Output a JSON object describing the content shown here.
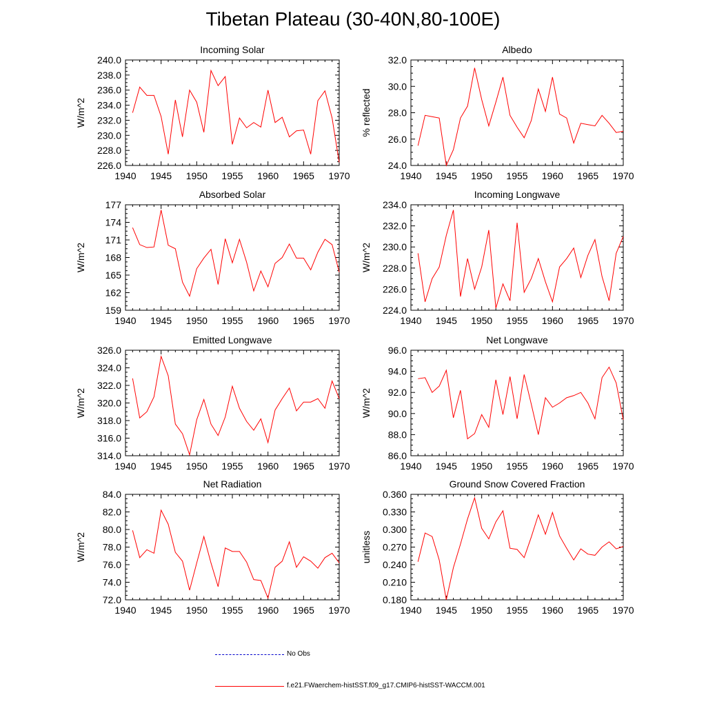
{
  "title": "Tibetan Plateau (30-40N,80-100E)",
  "colors": {
    "model": "#ff0000",
    "obs": "#0000cc",
    "axis": "#000000"
  },
  "legend": {
    "obs_label": "No Obs",
    "model_label": "f.e21.FWaerchem-histSST.f09_g17.CMIP6-histSST-WACCM.001"
  },
  "chart_data": [
    {
      "type": "line",
      "title": "Incoming Solar",
      "xlabel": "",
      "ylabel": "W/m^2",
      "xlim": [
        1940,
        1970
      ],
      "ylim": [
        226.0,
        240.0
      ],
      "xticks": [
        "1940",
        "1945",
        "1950",
        "1955",
        "1960",
        "1965",
        "1970"
      ],
      "yticks": [
        "226.0",
        "228.0",
        "230.0",
        "232.0",
        "234.0",
        "236.0",
        "238.0",
        "240.0"
      ],
      "x": [
        1941,
        1942,
        1943,
        1944,
        1945,
        1946,
        1947,
        1948,
        1949,
        1950,
        1951,
        1952,
        1953,
        1954,
        1955,
        1956,
        1957,
        1958,
        1959,
        1960,
        1961,
        1962,
        1963,
        1964,
        1965,
        1966,
        1967,
        1968,
        1969,
        1970
      ],
      "series": [
        {
          "values": [
            233.0,
            236.4,
            235.3,
            235.3,
            232.5,
            227.5,
            234.7,
            229.8,
            236.0,
            234.4,
            230.4,
            238.6,
            236.6,
            237.8,
            228.8,
            232.3,
            231.0,
            231.7,
            231.1,
            236.0,
            231.7,
            232.4,
            229.8,
            230.6,
            230.7,
            227.5,
            234.6,
            235.9,
            232.3,
            226.4
          ]
        }
      ]
    },
    {
      "type": "line",
      "title": "Albedo",
      "xlabel": "",
      "ylabel": "% reflected",
      "xlim": [
        1940,
        1970
      ],
      "ylim": [
        24.0,
        32.0
      ],
      "xticks": [
        "1940",
        "1945",
        "1950",
        "1955",
        "1960",
        "1965",
        "1970"
      ],
      "yticks": [
        "24.0",
        "26.0",
        "28.0",
        "30.0",
        "32.0"
      ],
      "x": [
        1941,
        1942,
        1943,
        1944,
        1945,
        1946,
        1947,
        1948,
        1949,
        1950,
        1951,
        1952,
        1953,
        1954,
        1955,
        1956,
        1957,
        1958,
        1959,
        1960,
        1961,
        1962,
        1963,
        1964,
        1965,
        1966,
        1967,
        1968,
        1969,
        1970
      ],
      "series": [
        {
          "values": [
            25.5,
            27.8,
            27.7,
            27.6,
            24.0,
            25.2,
            27.6,
            28.5,
            31.4,
            29.0,
            27.0,
            28.8,
            30.7,
            27.8,
            26.9,
            26.1,
            27.4,
            29.8,
            28.1,
            30.7,
            27.9,
            27.6,
            25.7,
            27.2,
            27.1,
            27.0,
            27.8,
            27.2,
            26.5,
            26.6
          ]
        }
      ]
    },
    {
      "type": "line",
      "title": "Absorbed Solar",
      "xlabel": "",
      "ylabel": "W/m^2",
      "xlim": [
        1940,
        1970
      ],
      "ylim": [
        159,
        177
      ],
      "xticks": [
        "1940",
        "1945",
        "1950",
        "1955",
        "1960",
        "1965",
        "1970"
      ],
      "yticks": [
        "159",
        "162",
        "165",
        "168",
        "171",
        "174",
        "177"
      ],
      "x": [
        1941,
        1942,
        1943,
        1944,
        1945,
        1946,
        1947,
        1948,
        1949,
        1950,
        1951,
        1952,
        1953,
        1954,
        1955,
        1956,
        1957,
        1958,
        1959,
        1960,
        1961,
        1962,
        1963,
        1964,
        1965,
        1966,
        1967,
        1968,
        1969,
        1970
      ],
      "series": [
        {
          "values": [
            173.1,
            170.2,
            169.7,
            169.8,
            176.1,
            170.1,
            169.5,
            163.8,
            161.4,
            166.1,
            167.9,
            169.4,
            163.4,
            171.2,
            167.1,
            171.1,
            167.2,
            162.3,
            165.7,
            163.0,
            167.0,
            168.0,
            170.3,
            167.9,
            167.9,
            165.9,
            168.9,
            171.1,
            170.2,
            165.5
          ]
        }
      ]
    },
    {
      "type": "line",
      "title": "Incoming Longwave",
      "xlabel": "",
      "ylabel": "W/m^2",
      "xlim": [
        1940,
        1970
      ],
      "ylim": [
        224.0,
        234.0
      ],
      "xticks": [
        "1940",
        "1945",
        "1950",
        "1955",
        "1960",
        "1965",
        "1970"
      ],
      "yticks": [
        "224.0",
        "226.0",
        "228.0",
        "230.0",
        "232.0",
        "234.0"
      ],
      "x": [
        1941,
        1942,
        1943,
        1944,
        1945,
        1946,
        1947,
        1948,
        1949,
        1950,
        1951,
        1952,
        1953,
        1954,
        1955,
        1956,
        1957,
        1958,
        1959,
        1960,
        1961,
        1962,
        1963,
        1964,
        1965,
        1966,
        1967,
        1968,
        1969,
        1970
      ],
      "series": [
        {
          "values": [
            229.4,
            224.8,
            227.0,
            228.1,
            231.1,
            233.5,
            225.3,
            228.9,
            226.0,
            228.1,
            231.6,
            224.2,
            226.5,
            224.9,
            232.3,
            225.7,
            227.0,
            228.9,
            226.7,
            224.8,
            228.1,
            228.9,
            229.9,
            227.1,
            229.2,
            230.7,
            227.2,
            224.9,
            229.4,
            231.0
          ]
        }
      ]
    },
    {
      "type": "line",
      "title": "Emitted Longwave",
      "xlabel": "",
      "ylabel": "W/m^2",
      "xlim": [
        1940,
        1970
      ],
      "ylim": [
        314.0,
        326.0
      ],
      "xticks": [
        "1940",
        "1945",
        "1950",
        "1955",
        "1960",
        "1965",
        "1970"
      ],
      "yticks": [
        "314.0",
        "316.0",
        "318.0",
        "320.0",
        "322.0",
        "324.0",
        "326.0"
      ],
      "x": [
        1941,
        1942,
        1943,
        1944,
        1945,
        1946,
        1947,
        1948,
        1949,
        1950,
        1951,
        1952,
        1953,
        1954,
        1955,
        1956,
        1957,
        1958,
        1959,
        1960,
        1961,
        1962,
        1963,
        1964,
        1965,
        1966,
        1967,
        1968,
        1969,
        1970
      ],
      "series": [
        {
          "values": [
            322.8,
            318.3,
            319.0,
            320.7,
            325.3,
            323.1,
            317.6,
            316.5,
            314.1,
            318.1,
            320.4,
            317.6,
            316.3,
            318.4,
            321.9,
            319.4,
            317.9,
            316.9,
            318.2,
            315.5,
            319.2,
            320.5,
            321.7,
            319.1,
            320.1,
            320.1,
            320.5,
            319.4,
            322.5,
            320.5
          ]
        }
      ]
    },
    {
      "type": "line",
      "title": "Net Longwave",
      "xlabel": "",
      "ylabel": "W/m^2",
      "xlim": [
        1940,
        1970
      ],
      "ylim": [
        86.0,
        96.0
      ],
      "xticks": [
        "1940",
        "1945",
        "1950",
        "1955",
        "1960",
        "1965",
        "1970"
      ],
      "yticks": [
        "86.0",
        "88.0",
        "90.0",
        "92.0",
        "94.0",
        "96.0"
      ],
      "x": [
        1941,
        1942,
        1943,
        1944,
        1945,
        1946,
        1947,
        1948,
        1949,
        1950,
        1951,
        1952,
        1953,
        1954,
        1955,
        1956,
        1957,
        1958,
        1959,
        1960,
        1961,
        1962,
        1963,
        1964,
        1965,
        1966,
        1967,
        1968,
        1969,
        1970
      ],
      "series": [
        {
          "values": [
            93.3,
            93.4,
            92.0,
            92.6,
            94.1,
            89.6,
            92.2,
            87.6,
            88.1,
            89.9,
            88.7,
            93.2,
            89.9,
            93.5,
            89.5,
            93.7,
            90.9,
            88.0,
            91.5,
            90.6,
            91.0,
            91.5,
            91.7,
            92.0,
            91.0,
            89.5,
            93.4,
            94.4,
            92.9,
            89.4
          ]
        }
      ]
    },
    {
      "type": "line",
      "title": "Net Radiation",
      "xlabel": "",
      "ylabel": "W/m^2",
      "xlim": [
        1940,
        1970
      ],
      "ylim": [
        72.0,
        84.0
      ],
      "xticks": [
        "1940",
        "1945",
        "1950",
        "1955",
        "1960",
        "1965",
        "1970"
      ],
      "yticks": [
        "72.0",
        "74.0",
        "76.0",
        "78.0",
        "80.0",
        "82.0",
        "84.0"
      ],
      "x": [
        1941,
        1942,
        1943,
        1944,
        1945,
        1946,
        1947,
        1948,
        1949,
        1950,
        1951,
        1952,
        1953,
        1954,
        1955,
        1956,
        1957,
        1958,
        1959,
        1960,
        1961,
        1962,
        1963,
        1964,
        1965,
        1966,
        1967,
        1968,
        1969,
        1970
      ],
      "series": [
        {
          "values": [
            79.9,
            76.8,
            77.7,
            77.3,
            82.2,
            80.6,
            77.4,
            76.4,
            73.1,
            76.2,
            79.2,
            76.2,
            73.5,
            77.9,
            77.5,
            77.5,
            76.3,
            74.3,
            74.2,
            72.2,
            75.7,
            76.4,
            78.6,
            75.7,
            76.9,
            76.4,
            75.6,
            76.8,
            77.3,
            76.2
          ]
        }
      ]
    },
    {
      "type": "line",
      "title": "Ground Snow Covered Fraction",
      "xlabel": "",
      "ylabel": "unitless",
      "xlim": [
        1940,
        1970
      ],
      "ylim": [
        0.18,
        0.36
      ],
      "xticks": [
        "1940",
        "1945",
        "1950",
        "1955",
        "1960",
        "1965",
        "1970"
      ],
      "yticks": [
        "0.180",
        "0.210",
        "0.240",
        "0.270",
        "0.300",
        "0.330",
        "0.360"
      ],
      "x": [
        1941,
        1942,
        1943,
        1944,
        1945,
        1946,
        1947,
        1948,
        1949,
        1950,
        1951,
        1952,
        1953,
        1954,
        1955,
        1956,
        1957,
        1958,
        1959,
        1960,
        1961,
        1962,
        1963,
        1964,
        1965,
        1966,
        1967,
        1968,
        1969,
        1970
      ],
      "series": [
        {
          "values": [
            0.245,
            0.294,
            0.288,
            0.248,
            0.18,
            0.235,
            0.275,
            0.318,
            0.354,
            0.302,
            0.284,
            0.313,
            0.332,
            0.268,
            0.266,
            0.252,
            0.287,
            0.325,
            0.292,
            0.329,
            0.289,
            0.268,
            0.248,
            0.267,
            0.258,
            0.256,
            0.27,
            0.279,
            0.267,
            0.271
          ]
        }
      ]
    }
  ]
}
